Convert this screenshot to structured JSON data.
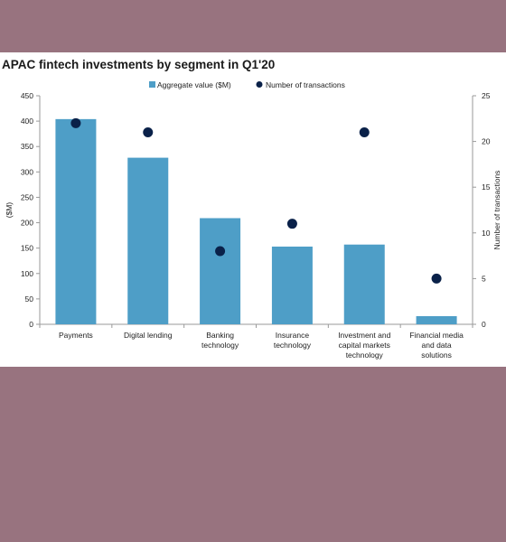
{
  "colors": {
    "page_background": "#98737f",
    "card_background": "#ffffff",
    "bar": "#4e9ec7",
    "dot": "#0a2149",
    "axis": "#9a9a9a",
    "text": "#222222"
  },
  "chart_data": {
    "type": "bar",
    "title": "APAC fintech investments by segment in Q1'20",
    "categories": [
      [
        "Payments"
      ],
      [
        "Digital lending"
      ],
      [
        "Banking",
        "technology"
      ],
      [
        "Insurance",
        "technology"
      ],
      [
        "Investment and",
        "capital markets",
        "technology"
      ],
      [
        "Financial media",
        "and data",
        "solutions"
      ]
    ],
    "series": [
      {
        "name": "Aggregate value ($M)",
        "kind": "bar",
        "axis": "left",
        "color": "#4e9ec7",
        "values": [
          404,
          328,
          209,
          153,
          157,
          16
        ]
      },
      {
        "name": "Number of transactions",
        "kind": "dot",
        "axis": "right",
        "color": "#0a2149",
        "values": [
          22,
          21,
          8,
          11,
          21,
          5
        ]
      }
    ],
    "ylabel": "($M)",
    "y2label": "Number of transactions",
    "ylim": [
      0,
      450
    ],
    "yticks": [
      0,
      50,
      100,
      150,
      200,
      250,
      300,
      350,
      400,
      450
    ],
    "y2lim": [
      0,
      25
    ],
    "y2ticks": [
      0,
      5,
      10,
      15,
      20,
      25
    ],
    "grid": false,
    "legend_position": "top"
  }
}
